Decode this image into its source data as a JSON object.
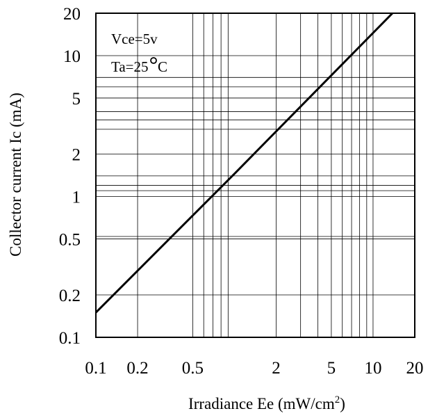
{
  "chart_data": {
    "type": "line",
    "xlabel_main": "Irradiance Ee (mW/cm",
    "xlabel_sup": "2",
    "xlabel_tail": ")",
    "ylabel": "Collector current Ic (mA)",
    "x_scale": "log",
    "y_scale": "log",
    "xlim": [
      0.1,
      20
    ],
    "ylim": [
      0.1,
      20
    ],
    "x_ticks": [
      {
        "value": 0.1,
        "label": "0.1"
      },
      {
        "value": 0.2,
        "label": "0.2"
      },
      {
        "value": 0.5,
        "label": "0.5"
      },
      {
        "value": 2,
        "label": "2"
      },
      {
        "value": 5,
        "label": "5"
      },
      {
        "value": 10,
        "label": "10"
      },
      {
        "value": 20,
        "label": "20"
      }
    ],
    "y_ticks": [
      {
        "value": 0.1,
        "label": "0.1"
      },
      {
        "value": 0.2,
        "label": "0.2"
      },
      {
        "value": 0.5,
        "label": "0.5"
      },
      {
        "value": 1,
        "label": "1"
      },
      {
        "value": 2,
        "label": "2"
      },
      {
        "value": 5,
        "label": "5"
      },
      {
        "value": 10,
        "label": "10"
      },
      {
        "value": 20,
        "label": "20"
      }
    ],
    "x_gridlines": [
      0.2,
      0.5,
      0.6,
      0.7,
      0.8,
      0.9,
      2,
      3,
      4,
      5,
      6,
      7,
      8,
      9,
      10
    ],
    "y_gridlines": [
      0.2,
      0.5,
      0.52,
      1,
      1.1,
      1.2,
      1.4,
      2,
      3,
      3.5,
      4,
      5,
      6,
      7,
      10
    ],
    "grid": true,
    "annotations": {
      "vce_text": "Vce=5v",
      "ta_text": "Ta=25",
      "ta_unit": "C"
    },
    "series": [
      {
        "x": [
          0.1,
          1,
          13.8
        ],
        "y": [
          0.15,
          1.45,
          20
        ]
      }
    ]
  }
}
